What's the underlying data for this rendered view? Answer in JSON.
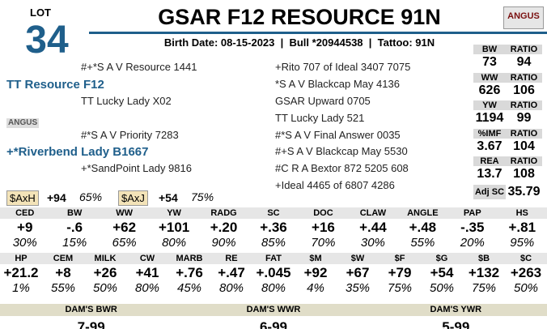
{
  "header": {
    "lot_label": "LOT",
    "lot_number": "34",
    "title": "GSAR F12 RESOURCE 91N",
    "info": "Birth Date: 08-15-2023  |  Bull *20944538  |  Tattoo: 91N",
    "logo": "ANGUS"
  },
  "pedigree": {
    "sire_side": [
      {
        "text": "#+*S A V Resource 1441",
        "level": 2
      },
      {
        "text": "TT Resource F12",
        "level": 1
      },
      {
        "text": "TT Lucky Lady X02",
        "level": 2
      }
    ],
    "badge": "ANGUS",
    "dam_side": [
      {
        "text": "#*S A V Priority 7283",
        "level": 2
      },
      {
        "text": "+*Riverbend Lady B1667",
        "level": 1
      },
      {
        "text": "+*SandPoint Lady 9816",
        "level": 2
      }
    ],
    "outer": [
      "+Rito 707 of Ideal 3407 7075",
      "*S A V Blackcap May 4136",
      "GSAR Upward 0705",
      "TT Lucky Lady 521",
      "#*S A V Final Answer 0035",
      "#+S A V Blackcap May 5530",
      "#C R A Bextor 872 5205 608",
      "+Ideal 4465 of 6807 4286"
    ]
  },
  "indexes": [
    {
      "name": "$AxH",
      "value": "+94",
      "pct": "65%"
    },
    {
      "name": "$AxJ",
      "value": "+54",
      "pct": "75%"
    }
  ],
  "performance": {
    "blocks": [
      {
        "label": "BW",
        "ratio_label": "RATIO",
        "value": "73",
        "ratio": "94"
      },
      {
        "label": "WW",
        "ratio_label": "RATIO",
        "value": "626",
        "ratio": "106"
      },
      {
        "label": "YW",
        "ratio_label": "RATIO",
        "value": "1194",
        "ratio": "99"
      },
      {
        "label": "%IMF",
        "ratio_label": "RATIO",
        "value": "3.67",
        "ratio": "104"
      },
      {
        "label": "REA",
        "ratio_label": "RATIO",
        "value": "13.7",
        "ratio": "108"
      }
    ],
    "adj_sc_label": "Adj SC",
    "adj_sc": "35.79"
  },
  "epd_rows": [
    {
      "headers": [
        "CED",
        "BW",
        "WW",
        "YW",
        "RADG",
        "SC",
        "DOC",
        "CLAW",
        "ANGLE",
        "PAP",
        "HS"
      ],
      "values": [
        "+9",
        "-.6",
        "+62",
        "+101",
        "+.20",
        "+.36",
        "+16",
        "+.44",
        "+.48",
        "-.35",
        "+.81"
      ],
      "pcts": [
        "30%",
        "15%",
        "65%",
        "80%",
        "90%",
        "85%",
        "70%",
        "30%",
        "55%",
        "20%",
        "95%"
      ]
    },
    {
      "headers": [
        "HP",
        "CEM",
        "MILK",
        "CW",
        "MARB",
        "RE",
        "FAT",
        "$M",
        "$W",
        "$F",
        "$G",
        "$B",
        "$C"
      ],
      "values": [
        "+21.2",
        "+8",
        "+26",
        "+41",
        "+.76",
        "+.47",
        "+.045",
        "+92",
        "+67",
        "+79",
        "+54",
        "+132",
        "+263"
      ],
      "pcts": [
        "1%",
        "55%",
        "50%",
        "80%",
        "45%",
        "80%",
        "80%",
        "4%",
        "35%",
        "75%",
        "50%",
        "75%",
        "50%"
      ]
    }
  ],
  "dams": [
    {
      "label": "DAM'S BWR",
      "value": "7-99"
    },
    {
      "label": "DAM'S WWR",
      "value": "6-99"
    },
    {
      "label": "DAM'S YWR",
      "value": "5-99"
    }
  ]
}
